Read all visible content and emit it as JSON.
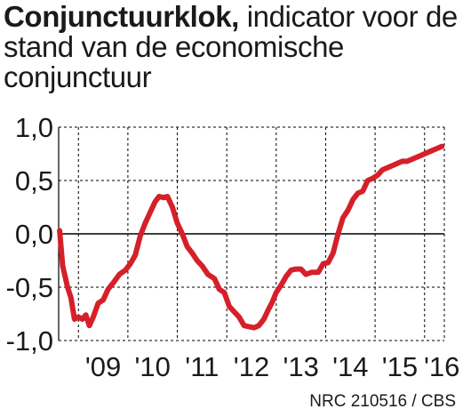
{
  "title_bold": "Conjunctuurklok,",
  "title_rest": " indicator voor de stand van de economische conjunctuur",
  "source": "NRC 210516 / CBS",
  "colors": {
    "line": "#d5202a",
    "axis": "#000000",
    "grid": "#000000"
  },
  "chart_data": {
    "type": "line",
    "title": "Conjunctuurklok, indicator voor de stand van de economische conjunctuur",
    "xlabel": "",
    "ylabel": "",
    "ylim": [
      -1.0,
      1.0
    ],
    "yticks": [
      1.0,
      0.5,
      0.0,
      -0.5,
      -1.0
    ],
    "ytick_labels": [
      "1,0",
      "0,5",
      "0,0",
      "-0,5",
      "-1,0"
    ],
    "xticks": [
      2009,
      2010,
      2011,
      2012,
      2013,
      2014,
      2015,
      2016
    ],
    "xtick_labels": [
      "'09",
      "'10",
      "'11",
      "'12",
      "'13",
      "'14",
      "'15",
      "'16"
    ],
    "xlim": [
      2008.6,
      2016.4
    ],
    "grid": true,
    "series": [
      {
        "x": [
          2008.62,
          2008.68,
          2008.78,
          2008.85,
          2008.92,
          2009.0,
          2009.08,
          2009.15,
          2009.22,
          2009.3,
          2009.4,
          2009.5,
          2009.6,
          2009.72,
          2009.83,
          2009.95,
          2010.05,
          2010.15,
          2010.25,
          2010.35,
          2010.45,
          2010.55,
          2010.63,
          2010.72,
          2010.8,
          2010.9,
          2011.0,
          2011.1,
          2011.2,
          2011.3,
          2011.4,
          2011.5,
          2011.62,
          2011.75,
          2011.85,
          2011.95,
          2012.05,
          2012.15,
          2012.25,
          2012.35,
          2012.45,
          2012.55,
          2012.65,
          2012.75,
          2012.83,
          2012.92,
          2013.0,
          2013.1,
          2013.2,
          2013.3,
          2013.4,
          2013.5,
          2013.6,
          2013.72,
          2013.85,
          2013.95,
          2014.05,
          2014.15,
          2014.25,
          2014.35,
          2014.45,
          2014.55,
          2014.65,
          2014.75,
          2014.85,
          2014.95,
          2015.05,
          2015.15,
          2015.25,
          2015.35,
          2015.45,
          2015.55,
          2015.65,
          2015.75,
          2015.85,
          2015.95,
          2016.05,
          2016.15,
          2016.25,
          2016.35
        ],
        "values": [
          0.03,
          -0.3,
          -0.5,
          -0.6,
          -0.8,
          -0.78,
          -0.8,
          -0.76,
          -0.86,
          -0.78,
          -0.65,
          -0.62,
          -0.52,
          -0.45,
          -0.38,
          -0.34,
          -0.28,
          -0.2,
          -0.02,
          0.1,
          0.2,
          0.3,
          0.35,
          0.34,
          0.35,
          0.25,
          0.1,
          0.0,
          -0.12,
          -0.18,
          -0.25,
          -0.3,
          -0.38,
          -0.42,
          -0.52,
          -0.55,
          -0.68,
          -0.73,
          -0.78,
          -0.86,
          -0.87,
          -0.88,
          -0.86,
          -0.8,
          -0.72,
          -0.64,
          -0.55,
          -0.48,
          -0.4,
          -0.34,
          -0.33,
          -0.33,
          -0.38,
          -0.36,
          -0.36,
          -0.28,
          -0.27,
          -0.18,
          0.0,
          0.15,
          0.22,
          0.32,
          0.38,
          0.4,
          0.5,
          0.52,
          0.55,
          0.6,
          0.62,
          0.64,
          0.66,
          0.68,
          0.68,
          0.7,
          0.72,
          0.74,
          0.76,
          0.78,
          0.8,
          0.82
        ]
      }
    ]
  }
}
